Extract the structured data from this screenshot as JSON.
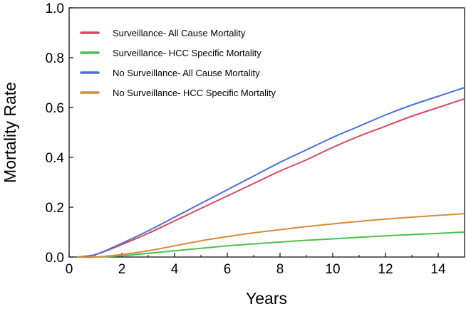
{
  "chart_data": {
    "type": "line",
    "title": "",
    "xlabel": "Years",
    "ylabel": "Mortality Rate",
    "xlim": [
      0,
      15
    ],
    "ylim": [
      0,
      1.0
    ],
    "x_ticks": [
      0,
      2,
      4,
      6,
      8,
      10,
      12,
      14
    ],
    "x_tick_labels": [
      "0",
      "2",
      "4",
      "6",
      "8",
      "10",
      "12",
      "14"
    ],
    "y_ticks": [
      0,
      0.2,
      0.4,
      0.6,
      0.8,
      1.0
    ],
    "y_tick_labels": [
      "0.0",
      "0.2",
      "0.4",
      "0.6",
      "0.8",
      "1.0"
    ],
    "grid": false,
    "legend_position": "top-left",
    "x": [
      0.3,
      1,
      2,
      3,
      4,
      5,
      6,
      7,
      8,
      9,
      10,
      11,
      12,
      13,
      14,
      15
    ],
    "series": [
      {
        "name": "Surveillance- All Cause Mortality",
        "color": "#d9475a",
        "values": [
          0.0,
          0.01,
          0.05,
          0.095,
          0.145,
          0.195,
          0.245,
          0.295,
          0.345,
          0.39,
          0.44,
          0.485,
          0.525,
          0.565,
          0.6,
          0.635
        ]
      },
      {
        "name": "Surveillance- HCC Specific Mortality",
        "color": "#4cbf4f",
        "values": [
          0.0,
          0.0,
          0.005,
          0.015,
          0.025,
          0.035,
          0.045,
          0.053,
          0.06,
          0.067,
          0.073,
          0.079,
          0.085,
          0.09,
          0.095,
          0.1
        ]
      },
      {
        "name": "No Surveillance- All Cause Mortality",
        "color": "#4a6fd8",
        "values": [
          0.0,
          0.01,
          0.055,
          0.105,
          0.16,
          0.215,
          0.27,
          0.325,
          0.38,
          0.43,
          0.48,
          0.525,
          0.57,
          0.61,
          0.645,
          0.68
        ]
      },
      {
        "name": "No Surveillance- HCC Specific Mortality",
        "color": "#d9893a",
        "values": [
          0.0,
          0.0,
          0.01,
          0.025,
          0.045,
          0.065,
          0.082,
          0.097,
          0.11,
          0.122,
          0.133,
          0.143,
          0.152,
          0.16,
          0.167,
          0.174
        ]
      }
    ]
  }
}
